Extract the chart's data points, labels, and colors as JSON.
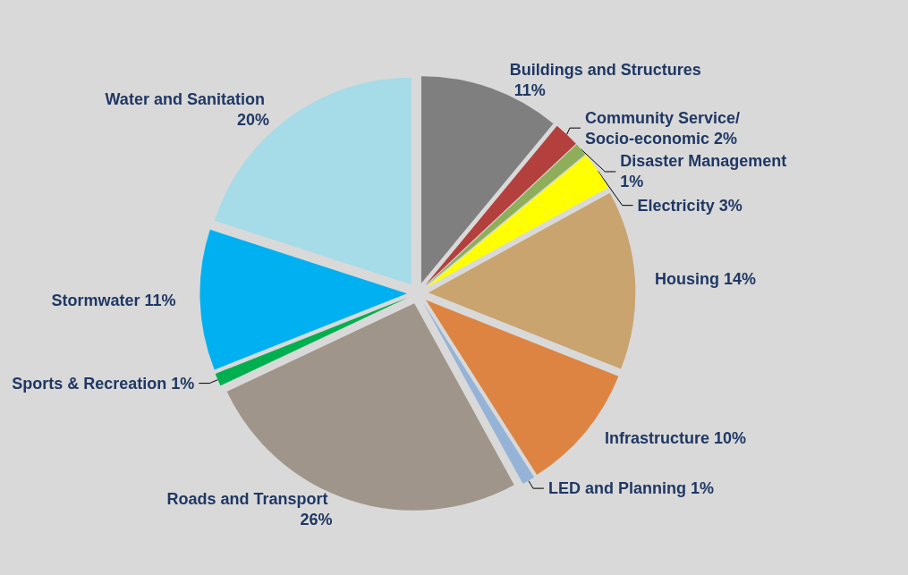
{
  "chart_data": {
    "type": "pie",
    "categories": [
      "Buildings and Structures",
      "Community Service/Socio-economic",
      "Disaster Management",
      "Electricity",
      "Housing",
      "Infrastructure",
      "LED and Planning",
      "Roads and Transport",
      "Sports & Recreation",
      "Stormwater",
      "Water and Sanitation"
    ],
    "values": [
      11,
      2,
      1,
      3,
      14,
      10,
      1,
      26,
      1,
      11,
      20
    ],
    "value_labels": [
      "11%",
      "2%",
      "1%",
      "3%",
      "14%",
      "10%",
      "1%",
      "26%",
      "1%",
      "11%",
      "20%"
    ],
    "colors": [
      "#7f7f7f",
      "#b3403c",
      "#8fae5a",
      "#ffff00",
      "#c9a46e",
      "#dd8442",
      "#95b3d7",
      "#a0958a",
      "#00b050",
      "#00b0f0",
      "#a6dbe8"
    ],
    "legend": false
  }
}
